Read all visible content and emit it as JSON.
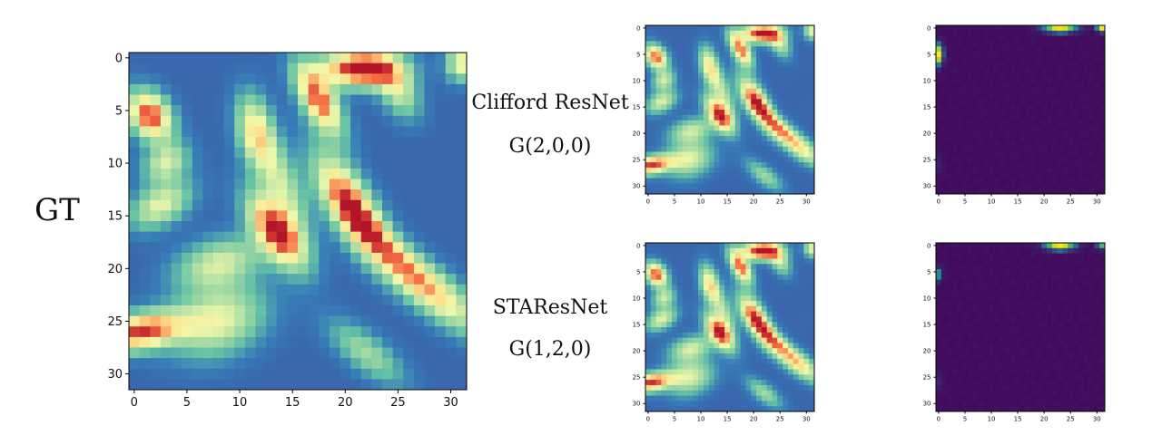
{
  "gt_title": "GT",
  "models": [
    {
      "name": "Clifford ResNet",
      "algebra": "G(2,0,0)"
    },
    {
      "name": "STAResNet",
      "algebra": "G(1,2,0)"
    }
  ],
  "axes": {
    "x_ticks": [
      "0",
      "5",
      "10",
      "15",
      "20",
      "25",
      "30"
    ],
    "y_ticks": [
      "0",
      "5",
      "10",
      "15",
      "20",
      "25",
      "30"
    ]
  },
  "colors": {
    "field_colormap": "Spectral_r",
    "error_colormap": "viridis"
  }
}
